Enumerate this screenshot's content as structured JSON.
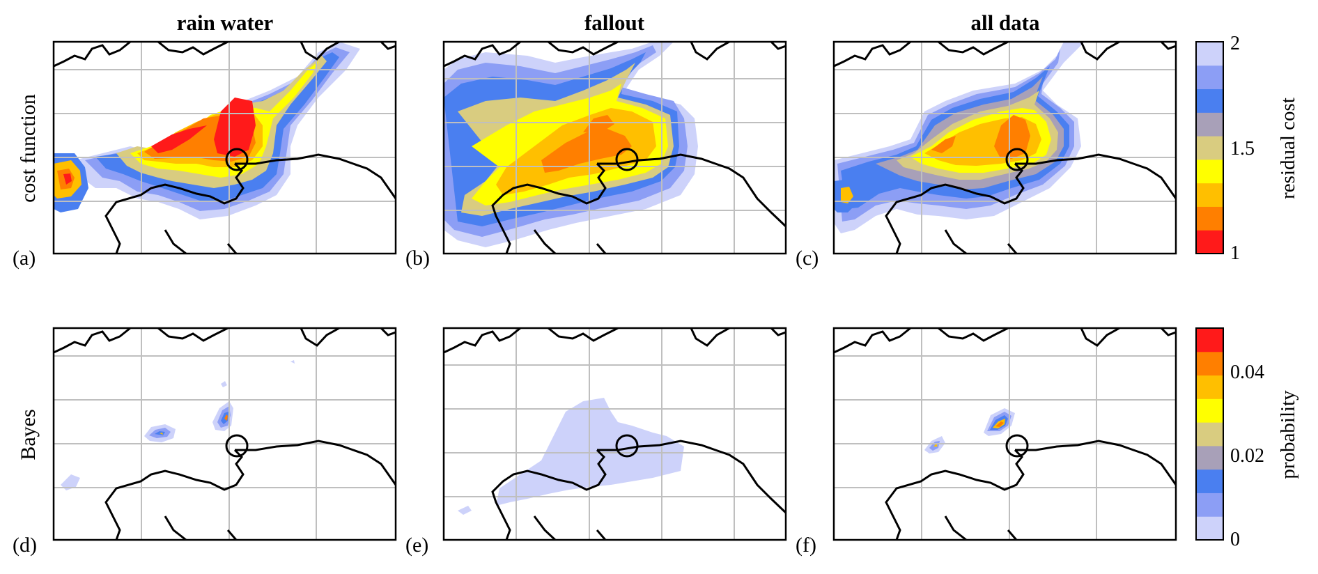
{
  "column_titles": [
    "rain water",
    "fallout",
    "all data"
  ],
  "row_labels": [
    "cost function",
    "Bayes"
  ],
  "panel_labels": [
    "(a)",
    "(b)",
    "(c)",
    "(d)",
    "(e)",
    "(f)"
  ],
  "colorbars": [
    {
      "label": "residual cost",
      "ticks": [
        "1",
        "1.5",
        "2"
      ],
      "colors": [
        "#ff1a1a",
        "#ff7f00",
        "#ffbf00",
        "#ffff00",
        "#d9cc80",
        "#a8a0b8",
        "#4a7ff0",
        "#8c9ef5",
        "#cdd2fa"
      ]
    },
    {
      "label": "probability",
      "ticks": [
        "0",
        "0.02",
        "0.04"
      ],
      "colors": [
        "#cdd2fa",
        "#8c9ef5",
        "#4a7ff0",
        "#a8a0b8",
        "#d9cc80",
        "#ffff00",
        "#ffbf00",
        "#ff7f00",
        "#ff1a1a"
      ]
    }
  ],
  "chart_data": [
    {
      "type": "heatmap",
      "title": "rain water",
      "row": "cost function",
      "panel": "(a)",
      "colorbar": "residual cost",
      "range": [
        1,
        2
      ],
      "note_marker": "circle"
    },
    {
      "type": "heatmap",
      "title": "fallout",
      "row": "cost function",
      "panel": "(b)",
      "colorbar": "residual cost",
      "range": [
        1,
        2
      ],
      "note_marker": "circle"
    },
    {
      "type": "heatmap",
      "title": "all data",
      "row": "cost function",
      "panel": "(c)",
      "colorbar": "residual cost",
      "range": [
        1,
        2
      ],
      "note_marker": "circle"
    },
    {
      "type": "heatmap",
      "title": "rain water",
      "row": "Bayes",
      "panel": "(d)",
      "colorbar": "probability",
      "range": [
        0,
        0.05
      ],
      "note_marker": "circle"
    },
    {
      "type": "heatmap",
      "title": "fallout",
      "row": "Bayes",
      "panel": "(e)",
      "colorbar": "probability",
      "range": [
        0,
        0.05
      ],
      "note_marker": "circle"
    },
    {
      "type": "heatmap",
      "title": "all data",
      "row": "Bayes",
      "panel": "(f)",
      "colorbar": "probability",
      "range": [
        0,
        0.05
      ],
      "note_marker": "circle"
    }
  ]
}
